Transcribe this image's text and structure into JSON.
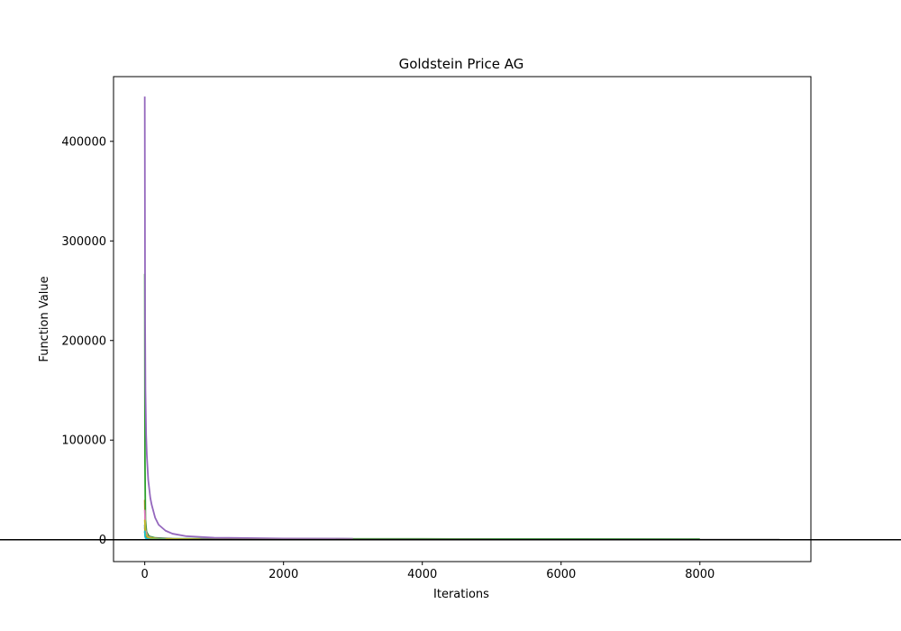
{
  "chart_data": {
    "type": "line",
    "title": "Goldstein Price AG",
    "xlabel": "Iterations",
    "ylabel": "Function Value",
    "xlim": [
      -450,
      9600
    ],
    "ylim": [
      -22000,
      465000
    ],
    "xticks": [
      0,
      2000,
      4000,
      6000,
      8000
    ],
    "yticks": [
      0,
      100000,
      200000,
      300000,
      400000
    ],
    "grid": false,
    "legend": "none",
    "reference_line": {
      "y": 0,
      "color": "#000000"
    },
    "series": [
      {
        "color": "#1f77b4",
        "x": [
          0,
          5,
          20,
          60,
          150,
          400,
          1500,
          3000
        ],
        "y": [
          15000,
          6000,
          2000,
          800,
          300,
          100,
          40,
          30
        ]
      },
      {
        "color": "#ff7f0e",
        "x": [
          0,
          5,
          20,
          60,
          150,
          300,
          800,
          1800
        ],
        "y": [
          40000,
          18000,
          7000,
          3000,
          1200,
          500,
          200,
          120
        ]
      },
      {
        "color": "#2ca02c",
        "x": [
          0,
          3,
          10,
          25,
          60,
          150,
          400,
          1500,
          4000,
          6000,
          8000
        ],
        "y": [
          267000,
          80000,
          20000,
          8000,
          3500,
          1800,
          1000,
          900,
          800,
          700,
          600
        ]
      },
      {
        "color": "#d62728",
        "x": [
          0,
          10,
          50,
          200,
          1000,
          2200,
          2750
        ],
        "y": [
          8000,
          3000,
          1000,
          400,
          200,
          150,
          120
        ]
      },
      {
        "color": "#9467bd",
        "x": [
          0,
          5,
          10,
          20,
          30,
          50,
          80,
          100,
          150,
          200,
          300,
          400,
          600,
          1000,
          2000,
          3000
        ],
        "y": [
          445000,
          220000,
          150000,
          105000,
          85000,
          60000,
          42000,
          35000,
          22000,
          15000,
          9000,
          6000,
          3500,
          2000,
          1200,
          1000
        ]
      },
      {
        "color": "#8c564b",
        "x": [
          0,
          20,
          100,
          500,
          2000,
          5000
        ],
        "y": [
          12000,
          4000,
          1500,
          600,
          300,
          200
        ]
      },
      {
        "color": "#e377c2",
        "x": [
          0,
          10,
          40,
          150,
          500,
          1500,
          2750
        ],
        "y": [
          30000,
          10000,
          3000,
          1000,
          400,
          200,
          150
        ]
      },
      {
        "color": "#7f7f7f",
        "x": [
          0,
          500,
          2000,
          5000,
          8000,
          9150
        ],
        "y": [
          2000,
          400,
          200,
          150,
          100,
          80
        ]
      },
      {
        "color": "#bcbd22",
        "x": [
          0,
          10,
          50,
          200,
          800
        ],
        "y": [
          20000,
          6000,
          2000,
          700,
          300
        ]
      },
      {
        "color": "#17becf",
        "x": [
          0,
          5,
          20,
          80,
          300
        ],
        "y": [
          9000,
          3000,
          1000,
          300,
          120
        ]
      }
    ]
  }
}
